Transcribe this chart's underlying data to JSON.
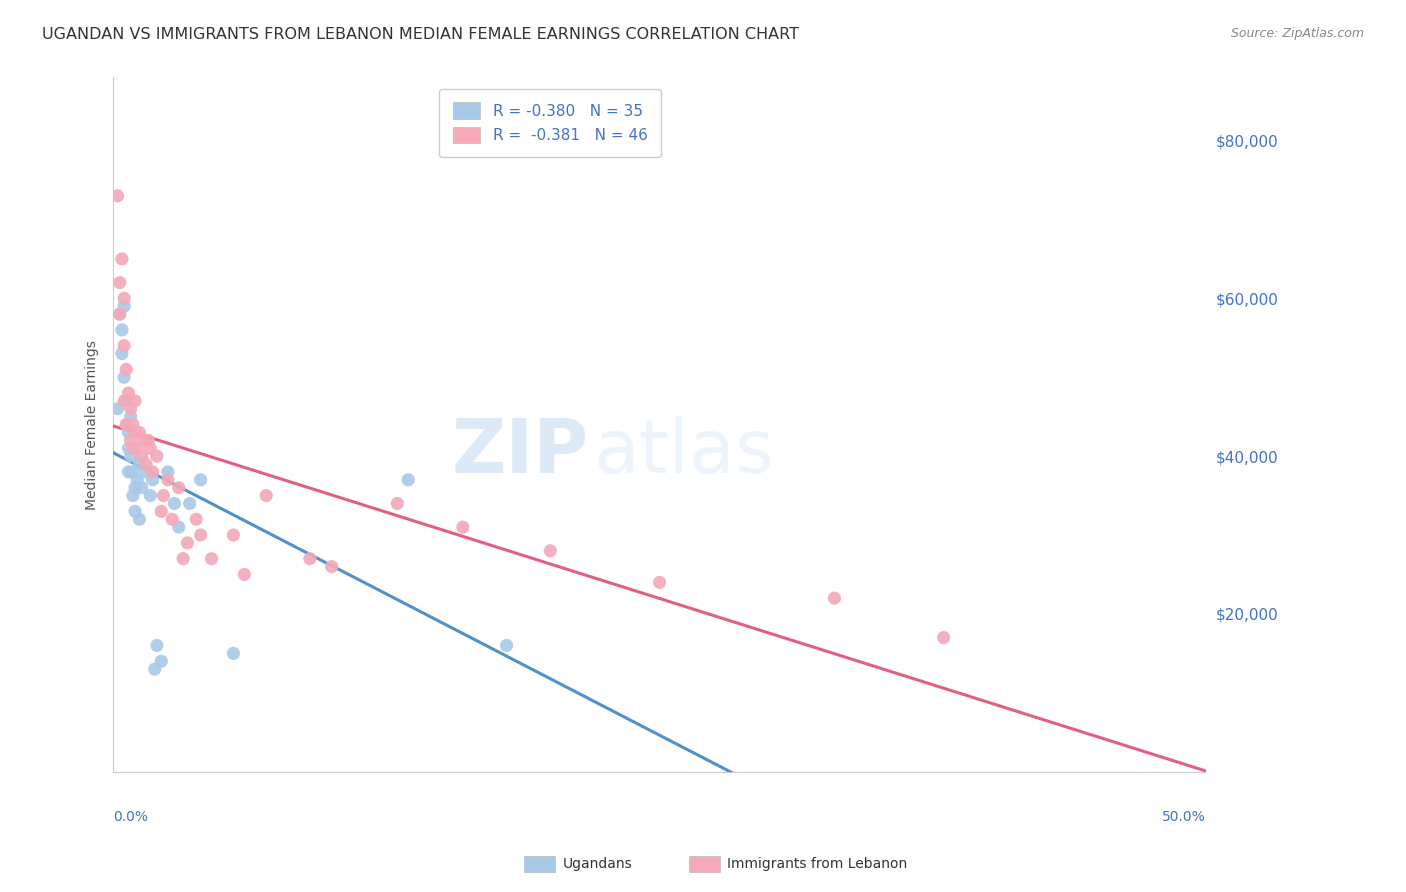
{
  "title": "UGANDAN VS IMMIGRANTS FROM LEBANON MEDIAN FEMALE EARNINGS CORRELATION CHART",
  "source": "Source: ZipAtlas.com",
  "ylabel": "Median Female Earnings",
  "y_tick_labels": [
    "$20,000",
    "$40,000",
    "$60,000",
    "$80,000"
  ],
  "y_tick_values": [
    20000,
    40000,
    60000,
    80000
  ],
  "xlim": [
    0.0,
    0.5
  ],
  "ylim": [
    0,
    88000
  ],
  "ugandan_color": "#A8C8E8",
  "lebanon_color": "#F4A8B8",
  "reg_ugandan_color": "#5090CC",
  "reg_lebanon_color": "#E06080",
  "ugandan_x": [
    0.002,
    0.003,
    0.004,
    0.004,
    0.005,
    0.005,
    0.006,
    0.006,
    0.007,
    0.007,
    0.007,
    0.008,
    0.008,
    0.009,
    0.009,
    0.01,
    0.01,
    0.011,
    0.012,
    0.012,
    0.013,
    0.015,
    0.017,
    0.018,
    0.019,
    0.02,
    0.022,
    0.025,
    0.028,
    0.03,
    0.035,
    0.04,
    0.055,
    0.135,
    0.18
  ],
  "ugandan_y": [
    46000,
    58000,
    56000,
    53000,
    59000,
    50000,
    47000,
    44000,
    43000,
    41000,
    38000,
    45000,
    40000,
    38000,
    35000,
    36000,
    33000,
    37000,
    32000,
    39000,
    36000,
    38000,
    35000,
    37000,
    13000,
    16000,
    14000,
    38000,
    34000,
    31000,
    34000,
    37000,
    15000,
    37000,
    16000
  ],
  "lebanon_x": [
    0.002,
    0.003,
    0.003,
    0.004,
    0.005,
    0.005,
    0.005,
    0.006,
    0.006,
    0.007,
    0.008,
    0.008,
    0.009,
    0.009,
    0.01,
    0.01,
    0.011,
    0.012,
    0.013,
    0.014,
    0.015,
    0.016,
    0.017,
    0.018,
    0.02,
    0.022,
    0.023,
    0.025,
    0.027,
    0.03,
    0.032,
    0.034,
    0.038,
    0.04,
    0.045,
    0.055,
    0.06,
    0.07,
    0.09,
    0.1,
    0.13,
    0.16,
    0.2,
    0.25,
    0.33,
    0.38
  ],
  "lebanon_y": [
    73000,
    62000,
    58000,
    65000,
    60000,
    54000,
    47000,
    51000,
    44000,
    48000,
    46000,
    42000,
    44000,
    41000,
    47000,
    43000,
    41000,
    43000,
    40000,
    42000,
    39000,
    42000,
    41000,
    38000,
    40000,
    33000,
    35000,
    37000,
    32000,
    36000,
    27000,
    29000,
    32000,
    30000,
    27000,
    30000,
    25000,
    35000,
    27000,
    26000,
    34000,
    31000,
    28000,
    24000,
    22000,
    17000
  ],
  "background_color": "#FFFFFF",
  "grid_color": "#DDDDDD",
  "title_fontsize": 11.5,
  "source_fontsize": 9,
  "axis_label_fontsize": 10,
  "legend1_label": "R = -0.380   N = 35",
  "legend2_label": "R =  -0.381   N = 46",
  "bottom_legend1": "Ugandans",
  "bottom_legend2": "Immigrants from Lebanon",
  "watermark_zip": "ZIP",
  "watermark_atlas": "atlas"
}
